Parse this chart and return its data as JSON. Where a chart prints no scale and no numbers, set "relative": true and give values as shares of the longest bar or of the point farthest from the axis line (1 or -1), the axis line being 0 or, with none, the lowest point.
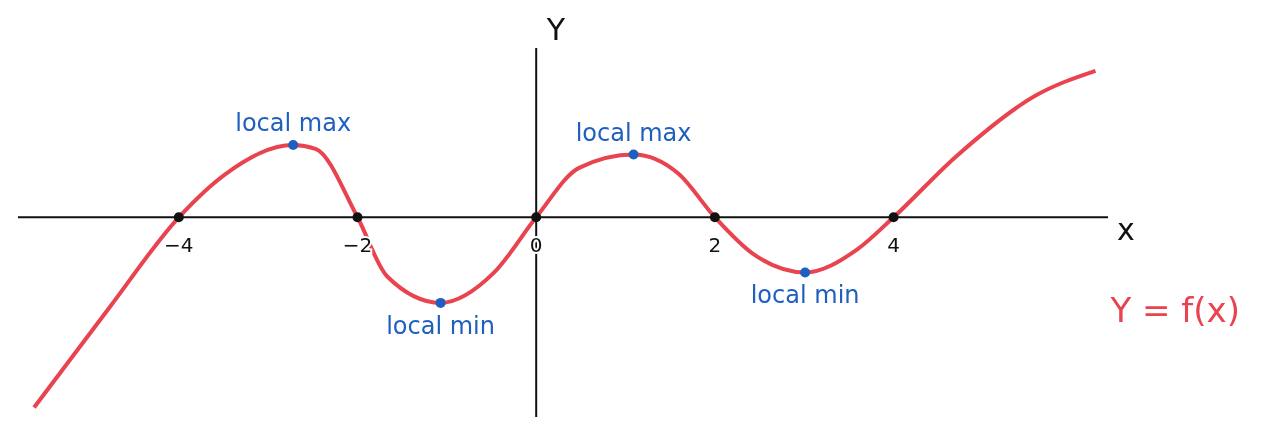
{
  "chart_data": {
    "type": "line",
    "relative": true,
    "xlabel": "x",
    "ylabel": "Y",
    "xlim": [
      -5.8,
      6.4
    ],
    "xticks": [
      -4,
      -2,
      0,
      2,
      4
    ],
    "line_style": "solid",
    "ref_lines": [
      {
        "axis": "x",
        "value": 0
      }
    ],
    "series": [
      {
        "name": "Y = f(x)",
        "color": "#e8434f",
        "marker": "none",
        "x": [
          -5.62,
          -4.77,
          -4,
          -3.47,
          -2.72,
          -2.47,
          -2,
          -1.67,
          -1.07,
          -0.47,
          0,
          0.48,
          1.09,
          1.59,
          2,
          2.42,
          3.01,
          3.59,
          4,
          4.7,
          5.59,
          6.26
        ],
        "values": [
          -1,
          -0.47,
          0,
          0.23,
          0.38,
          0.36,
          0,
          -0.31,
          -0.45,
          -0.29,
          0,
          0.26,
          0.33,
          0.23,
          0,
          -0.19,
          -0.29,
          -0.17,
          0,
          0.32,
          0.64,
          0.77
        ]
      },
      {
        "type": "scatter",
        "marker": "circle",
        "color": "#1f5fbf",
        "x": [
          -2.72,
          -1.07,
          1.09,
          3.01
        ],
        "values": [
          0.38,
          -0.45,
          0.33,
          -0.29
        ]
      },
      {
        "type": "scatter",
        "marker": "circle",
        "color": "#111111",
        "x": [
          -4,
          -2,
          0,
          2,
          4
        ],
        "values": [
          0,
          0,
          0,
          0,
          0
        ]
      }
    ],
    "annotations": [
      {
        "text": "local max",
        "x": -2.72,
        "y": 0.38
      },
      {
        "text": "local min",
        "x": -1.07,
        "y": -0.45
      },
      {
        "text": "local max",
        "x": 1.09,
        "y": 0.33
      },
      {
        "text": "local min",
        "x": 3.01,
        "y": -0.29
      }
    ]
  }
}
